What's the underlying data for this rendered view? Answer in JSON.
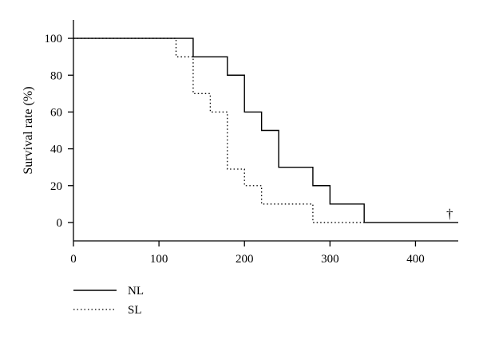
{
  "chart_data": {
    "type": "line",
    "step": true,
    "ylabel": "Survival rate (%)",
    "xlabel": "",
    "xlim": [
      0,
      450
    ],
    "ylim": [
      -10,
      110
    ],
    "xticks": [
      0,
      100,
      200,
      300,
      400
    ],
    "yticks": [
      0,
      20,
      40,
      60,
      80,
      100
    ],
    "grid": false,
    "legend_position": "bottom-left",
    "annotation": "†",
    "annotation_x": 440,
    "annotation_y": 5,
    "series": [
      {
        "name": "NL",
        "style": "solid",
        "x": [
          0,
          140,
          180,
          200,
          220,
          240,
          280,
          300,
          340,
          450
        ],
        "y": [
          100,
          90,
          80,
          60,
          50,
          30,
          20,
          10,
          0,
          0
        ]
      },
      {
        "name": "SL",
        "style": "dotted",
        "x": [
          0,
          120,
          140,
          160,
          180,
          200,
          220,
          280,
          340
        ],
        "y": [
          100,
          90,
          70,
          60,
          29,
          20,
          10,
          0,
          0
        ]
      }
    ]
  }
}
